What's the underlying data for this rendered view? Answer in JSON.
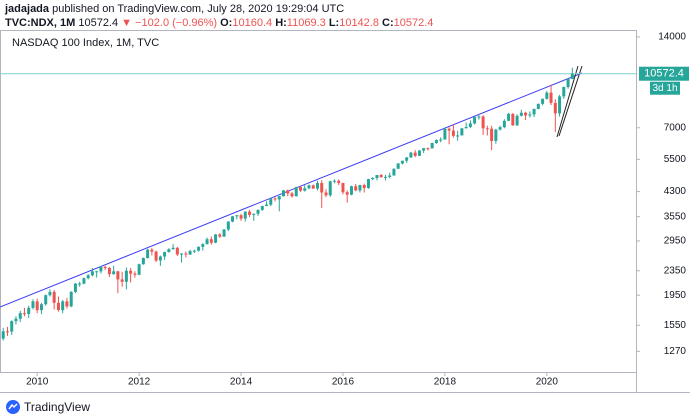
{
  "publisher": "jadajada",
  "published_text": "published on TradingView.com, July 28, 2020 19:29:04 UTC",
  "symbol": "TVC:NDX, 1M",
  "change": "▼ −102.0 (−0.96%)",
  "ohlc_prefixes": [
    "O:",
    "H:",
    "L:",
    "C:"
  ],
  "footer": "TradingView",
  "chart_data": {
    "type": "candlestick",
    "title": "NASDAQ 100 Index, 1M, TVC",
    "countdown": "3d 1h",
    "up_color": "#26a69a",
    "down_color": "#ef5350",
    "log_scale": true,
    "grid": false,
    "ylim": [
      1085,
      14760
    ],
    "yticks": [
      14000,
      7000,
      5500,
      4300,
      3550,
      2950,
      2350,
      1950,
      1550,
      1270
    ],
    "xlim": [
      2009.27,
      2021.75
    ],
    "xticks": [
      2010,
      2012,
      2014,
      2016,
      2018,
      2020
    ],
    "x": [
      2009.333,
      2009.417,
      2009.5,
      2009.583,
      2009.667,
      2009.75,
      2009.833,
      2009.917,
      2010,
      2010.083,
      2010.167,
      2010.25,
      2010.333,
      2010.417,
      2010.5,
      2010.583,
      2010.667,
      2010.75,
      2010.833,
      2010.917,
      2011,
      2011.083,
      2011.167,
      2011.25,
      2011.333,
      2011.417,
      2011.5,
      2011.583,
      2011.667,
      2011.75,
      2011.833,
      2011.917,
      2012,
      2012.083,
      2012.167,
      2012.25,
      2012.333,
      2012.417,
      2012.5,
      2012.583,
      2012.667,
      2012.75,
      2012.833,
      2012.917,
      2013,
      2013.083,
      2013.167,
      2013.25,
      2013.333,
      2013.417,
      2013.5,
      2013.583,
      2013.667,
      2013.75,
      2013.833,
      2013.917,
      2014,
      2014.083,
      2014.167,
      2014.25,
      2014.333,
      2014.417,
      2014.5,
      2014.583,
      2014.667,
      2014.75,
      2014.833,
      2014.917,
      2015,
      2015.083,
      2015.167,
      2015.25,
      2015.333,
      2015.417,
      2015.5,
      2015.583,
      2015.667,
      2015.75,
      2015.833,
      2015.917,
      2016,
      2016.083,
      2016.167,
      2016.25,
      2016.333,
      2016.417,
      2016.5,
      2016.583,
      2016.667,
      2016.75,
      2016.833,
      2016.917,
      2017,
      2017.083,
      2017.167,
      2017.25,
      2017.333,
      2017.417,
      2017.5,
      2017.583,
      2017.667,
      2017.75,
      2017.833,
      2017.917,
      2018,
      2018.083,
      2018.167,
      2018.25,
      2018.333,
      2018.417,
      2018.5,
      2018.583,
      2018.667,
      2018.75,
      2018.833,
      2018.917,
      2019,
      2019.083,
      2019.167,
      2019.25,
      2019.333,
      2019.417,
      2019.5,
      2019.583,
      2019.667,
      2019.75,
      2019.833,
      2019.917,
      2020,
      2020.083,
      2020.167,
      2020.25,
      2020.333,
      2020.417,
      2020.5
    ],
    "candles": [
      [
        1400,
        1520,
        1380,
        1480
      ],
      [
        1480,
        1530,
        1430,
        1477
      ],
      [
        1477,
        1610,
        1440,
        1600
      ],
      [
        1600,
        1660,
        1560,
        1630
      ],
      [
        1630,
        1730,
        1590,
        1700
      ],
      [
        1700,
        1770,
        1660,
        1690
      ],
      [
        1690,
        1800,
        1640,
        1770
      ],
      [
        1770,
        1890,
        1750,
        1860
      ],
      [
        1860,
        1900,
        1700,
        1740
      ],
      [
        1740,
        1840,
        1690,
        1820
      ],
      [
        1820,
        1960,
        1800,
        1950
      ],
      [
        1950,
        2040,
        1930,
        2000
      ],
      [
        2000,
        2030,
        1750,
        1840
      ],
      [
        1840,
        1930,
        1720,
        1740
      ],
      [
        1740,
        1880,
        1700,
        1860
      ],
      [
        1860,
        1910,
        1760,
        1790
      ],
      [
        1790,
        2010,
        1780,
        2000
      ],
      [
        2000,
        2140,
        1980,
        2130
      ],
      [
        2130,
        2160,
        2080,
        2130
      ],
      [
        2130,
        2230,
        2120,
        2220
      ],
      [
        2220,
        2290,
        2200,
        2270
      ],
      [
        2270,
        2400,
        2250,
        2340
      ],
      [
        2340,
        2350,
        2230,
        2340
      ],
      [
        2340,
        2440,
        2300,
        2420
      ],
      [
        2420,
        2440,
        2360,
        2400
      ],
      [
        2400,
        2420,
        2240,
        2290
      ],
      [
        2290,
        2440,
        2280,
        2340
      ],
      [
        2340,
        2350,
        1980,
        2200
      ],
      [
        2200,
        2330,
        2080,
        2160
      ],
      [
        2160,
        2410,
        2040,
        2350
      ],
      [
        2350,
        2400,
        2150,
        2300
      ],
      [
        2300,
        2340,
        2230,
        2280
      ],
      [
        2280,
        2480,
        2270,
        2470
      ],
      [
        2470,
        2600,
        2460,
        2590
      ],
      [
        2590,
        2780,
        2580,
        2760
      ],
      [
        2760,
        2800,
        2640,
        2720
      ],
      [
        2720,
        2740,
        2510,
        2540
      ],
      [
        2540,
        2640,
        2440,
        2620
      ],
      [
        2620,
        2720,
        2550,
        2710
      ],
      [
        2710,
        2790,
        2700,
        2770
      ],
      [
        2770,
        2880,
        2760,
        2800
      ],
      [
        2800,
        2820,
        2630,
        2660
      ],
      [
        2660,
        2690,
        2500,
        2680
      ],
      [
        2680,
        2720,
        2600,
        2660
      ],
      [
        2660,
        2760,
        2650,
        2730
      ],
      [
        2730,
        2760,
        2690,
        2740
      ],
      [
        2740,
        2830,
        2720,
        2820
      ],
      [
        2820,
        2900,
        2740,
        2880
      ],
      [
        2880,
        3030,
        2870,
        2990
      ],
      [
        2990,
        3050,
        2870,
        2910
      ],
      [
        2910,
        3110,
        2900,
        3100
      ],
      [
        3100,
        3130,
        3020,
        3050
      ],
      [
        3050,
        3230,
        3040,
        3220
      ],
      [
        3220,
        3430,
        3180,
        3420
      ],
      [
        3420,
        3570,
        3400,
        3560
      ],
      [
        3560,
        3600,
        3480,
        3590
      ],
      [
        3590,
        3630,
        3440,
        3500
      ],
      [
        3500,
        3700,
        3420,
        3690
      ],
      [
        3690,
        3740,
        3540,
        3600
      ],
      [
        3600,
        3640,
        3440,
        3630
      ],
      [
        3630,
        3750,
        3570,
        3740
      ],
      [
        3740,
        3860,
        3710,
        3850
      ],
      [
        3850,
        3990,
        3850,
        3890
      ],
      [
        3890,
        4090,
        3850,
        4080
      ],
      [
        4080,
        4120,
        3990,
        4050
      ],
      [
        4050,
        4160,
        3700,
        4150
      ],
      [
        4150,
        4350,
        4140,
        4340
      ],
      [
        4340,
        4370,
        4150,
        4240
      ],
      [
        4240,
        4290,
        4110,
        4150
      ],
      [
        4150,
        4460,
        4140,
        4450
      ],
      [
        4450,
        4490,
        4290,
        4330
      ],
      [
        4330,
        4520,
        4300,
        4410
      ],
      [
        4410,
        4540,
        4380,
        4510
      ],
      [
        4510,
        4540,
        4390,
        4400
      ],
      [
        4400,
        4670,
        4340,
        4590
      ],
      [
        4590,
        4690,
        3790,
        4270
      ],
      [
        4270,
        4380,
        4120,
        4180
      ],
      [
        4180,
        4670,
        4130,
        4650
      ],
      [
        4650,
        4720,
        4580,
        4670
      ],
      [
        4670,
        4720,
        4520,
        4590
      ],
      [
        4590,
        4600,
        4210,
        4280
      ],
      [
        4280,
        4340,
        3950,
        4200
      ],
      [
        4200,
        4500,
        4180,
        4480
      ],
      [
        4480,
        4560,
        4310,
        4340
      ],
      [
        4340,
        4530,
        4270,
        4520
      ],
      [
        4520,
        4570,
        4270,
        4420
      ],
      [
        4420,
        4740,
        4390,
        4730
      ],
      [
        4730,
        4800,
        4690,
        4770
      ],
      [
        4770,
        4880,
        4690,
        4880
      ],
      [
        4880,
        4920,
        4780,
        4800
      ],
      [
        4800,
        4890,
        4680,
        4810
      ],
      [
        4810,
        4970,
        4760,
        4860
      ],
      [
        4860,
        5130,
        4860,
        5120
      ],
      [
        5120,
        5340,
        5110,
        5330
      ],
      [
        5330,
        5440,
        5290,
        5440
      ],
      [
        5440,
        5600,
        5350,
        5580
      ],
      [
        5580,
        5820,
        5560,
        5790
      ],
      [
        5790,
        5900,
        5590,
        5650
      ],
      [
        5650,
        5910,
        5640,
        5880
      ],
      [
        5880,
        6000,
        5770,
        5990
      ],
      [
        5990,
        6020,
        5880,
        5980
      ],
      [
        5980,
        6250,
        5980,
        6230
      ],
      [
        6230,
        6410,
        6190,
        6370
      ],
      [
        6370,
        6500,
        6260,
        6400
      ],
      [
        6400,
        7020,
        6390,
        6950
      ],
      [
        6950,
        7020,
        6170,
        6850
      ],
      [
        6850,
        7190,
        6490,
        6580
      ],
      [
        6580,
        6840,
        6340,
        6600
      ],
      [
        6600,
        6990,
        6600,
        6970
      ],
      [
        6970,
        7280,
        6960,
        7040
      ],
      [
        7040,
        7410,
        6980,
        7230
      ],
      [
        7230,
        7620,
        7180,
        7600
      ],
      [
        7600,
        7700,
        7440,
        7630
      ],
      [
        7630,
        7700,
        6630,
        6970
      ],
      [
        6970,
        7110,
        6600,
        6950
      ],
      [
        6950,
        7100,
        5900,
        6330
      ],
      [
        6330,
        6940,
        6200,
        6900
      ],
      [
        6900,
        7110,
        6850,
        7030
      ],
      [
        7030,
        7470,
        6970,
        7380
      ],
      [
        7380,
        7850,
        7360,
        7780
      ],
      [
        7780,
        7830,
        7100,
        7130
      ],
      [
        7130,
        7760,
        7100,
        7670
      ],
      [
        7670,
        8030,
        7620,
        7850
      ],
      [
        7850,
        7910,
        7420,
        7690
      ],
      [
        7690,
        7930,
        7560,
        7750
      ],
      [
        7750,
        8100,
        7590,
        8080
      ],
      [
        8080,
        8420,
        8060,
        8400
      ],
      [
        8400,
        8750,
        8310,
        8730
      ],
      [
        8730,
        9260,
        8680,
        9150
      ],
      [
        9150,
        9720,
        8320,
        8460
      ],
      [
        8460,
        8700,
        6770,
        7810
      ],
      [
        7810,
        9000,
        7630,
        8890
      ],
      [
        8890,
        9580,
        8730,
        9550
      ],
      [
        9550,
        10200,
        9430,
        10160
      ],
      [
        10160.4,
        11069.3,
        10142.8,
        10572.4
      ]
    ]
  }
}
